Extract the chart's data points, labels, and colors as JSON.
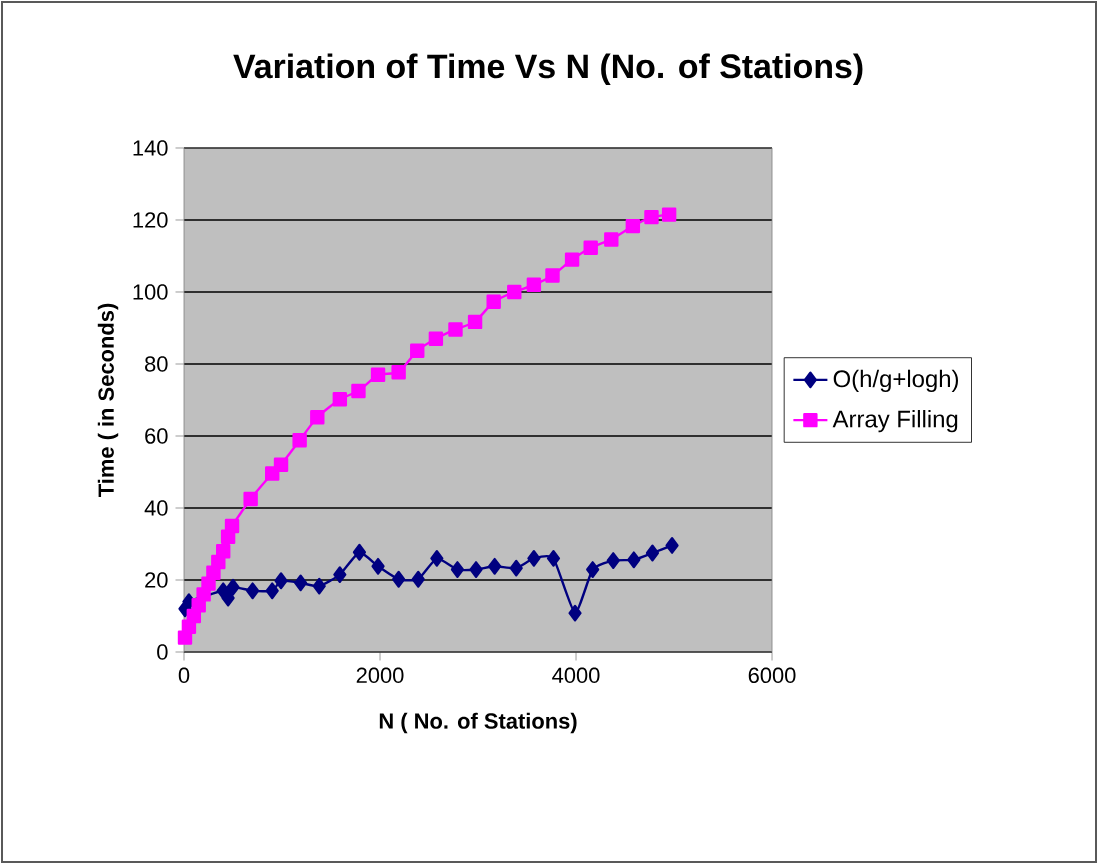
{
  "chart_data": {
    "type": "line",
    "title": "Variation of Time Vs N (No. of Stations)",
    "xlabel": "N ( No. of Stations)",
    "ylabel": "Time ( in Seconds)",
    "xlim": [
      0,
      6000
    ],
    "ylim": [
      0,
      140
    ],
    "xticks": [
      0,
      2000,
      4000,
      6000
    ],
    "yticks": [
      0,
      20,
      40,
      60,
      80,
      100,
      120,
      140
    ],
    "grid": "y",
    "legend": "right",
    "series": [
      {
        "name": "O(h/g+logh)",
        "color": "#000080",
        "marker": "diamond",
        "x": [
          10,
          50,
          100,
          150,
          200,
          250,
          300,
          350,
          400,
          450,
          500,
          700,
          900,
          990,
          1190,
          1380,
          1590,
          1790,
          1980,
          2190,
          2390,
          2580,
          2790,
          2980,
          3170,
          3390,
          3570,
          3770,
          3990,
          4170,
          4380,
          4590,
          4780,
          4980
        ],
        "values": [
          12,
          14,
          null,
          null,
          null,
          null,
          null,
          null,
          17,
          15,
          18,
          17,
          17,
          19.8,
          19.2,
          18.3,
          21.5,
          27.7,
          23.8,
          20.2,
          20.2,
          26,
          22.9,
          22.9,
          23.8,
          23.3,
          26,
          26,
          10.8,
          22.9,
          25.4,
          25.6,
          27.5,
          29.6
        ]
      },
      {
        "name": "Array Filling",
        "color": "#ff00ff",
        "marker": "square",
        "x": [
          10,
          50,
          100,
          150,
          200,
          250,
          300,
          350,
          400,
          450,
          490,
          680,
          900,
          990,
          1180,
          1360,
          1590,
          1780,
          1980,
          2190,
          2380,
          2570,
          2770,
          2970,
          3160,
          3370,
          3570,
          3760,
          3960,
          4150,
          4360,
          4580,
          4770,
          4950
        ],
        "values": [
          4,
          7,
          10,
          13,
          16,
          19,
          22,
          25,
          28,
          32,
          35,
          42.5,
          49.6,
          52,
          58.8,
          65.2,
          70.2,
          72.5,
          77,
          77.7,
          83.7,
          87,
          89.6,
          91.7,
          97.3,
          100,
          102,
          104.6,
          109,
          112.3,
          114.6,
          118.3,
          120.8,
          121.5
        ]
      }
    ]
  }
}
